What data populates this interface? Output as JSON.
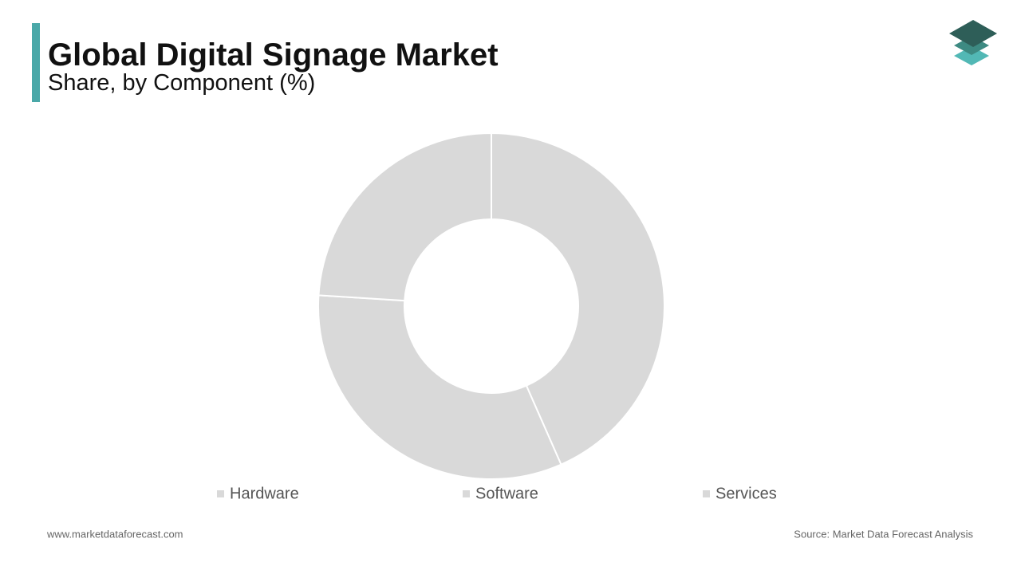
{
  "chart_data": {
    "type": "donut",
    "title": "Global Digital Signage Market",
    "subtitle": "Share, by Component (%)",
    "categories": [
      "Hardware",
      "Software",
      "Services"
    ],
    "values": [
      43.4,
      32.6,
      24.0
    ],
    "colors": [
      "#d9d9d9",
      "#d9d9d9",
      "#d9d9d9"
    ]
  },
  "footer": {
    "website": "www.marketdataforecast.com",
    "source": "Source: Market Data Forecast Analysis"
  }
}
